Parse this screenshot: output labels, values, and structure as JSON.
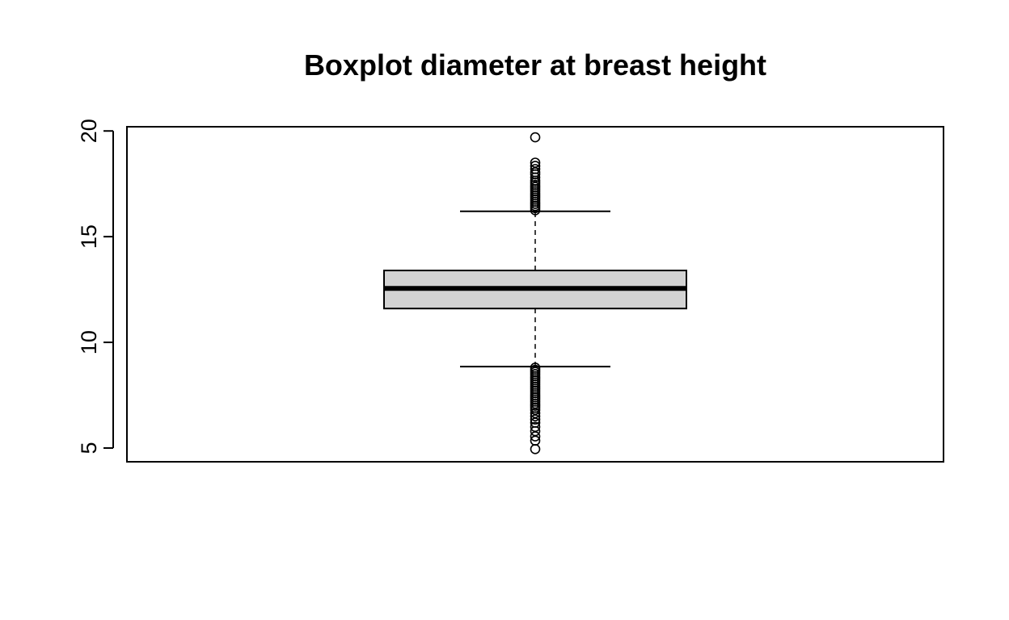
{
  "chart_data": {
    "type": "boxplot",
    "title": "Boxplot diameter at breast height",
    "xlabel": "",
    "ylabel": "",
    "ylim": [
      4.35,
      20.2
    ],
    "yticks": [
      5,
      10,
      15,
      20
    ],
    "yticklabels": [
      "5",
      "10",
      "15",
      "20"
    ],
    "grid": false,
    "legend": "none",
    "box": {
      "whisker_low": 8.85,
      "q1": 11.6,
      "median": 12.55,
      "q3": 13.4,
      "whisker_high": 16.2
    },
    "outliers_high": [
      16.25,
      16.35,
      16.45,
      16.55,
      16.65,
      16.75,
      16.85,
      16.95,
      17.05,
      17.15,
      17.25,
      17.35,
      17.45,
      17.55,
      17.65,
      17.8,
      17.95,
      18.05,
      18.2,
      18.35,
      18.5,
      19.7
    ],
    "outliers_low": [
      4.95,
      5.35,
      5.55,
      5.8,
      6.0,
      6.2,
      6.35,
      6.5,
      6.65,
      6.8,
      6.9,
      7.0,
      7.1,
      7.2,
      7.3,
      7.4,
      7.5,
      7.6,
      7.7,
      7.8,
      7.9,
      8.0,
      8.1,
      8.2,
      8.3,
      8.4,
      8.5,
      8.6,
      8.7,
      8.8
    ],
    "colors": {
      "box_fill": "#d3d3d3",
      "stroke": "#000000",
      "background": "#ffffff"
    }
  }
}
